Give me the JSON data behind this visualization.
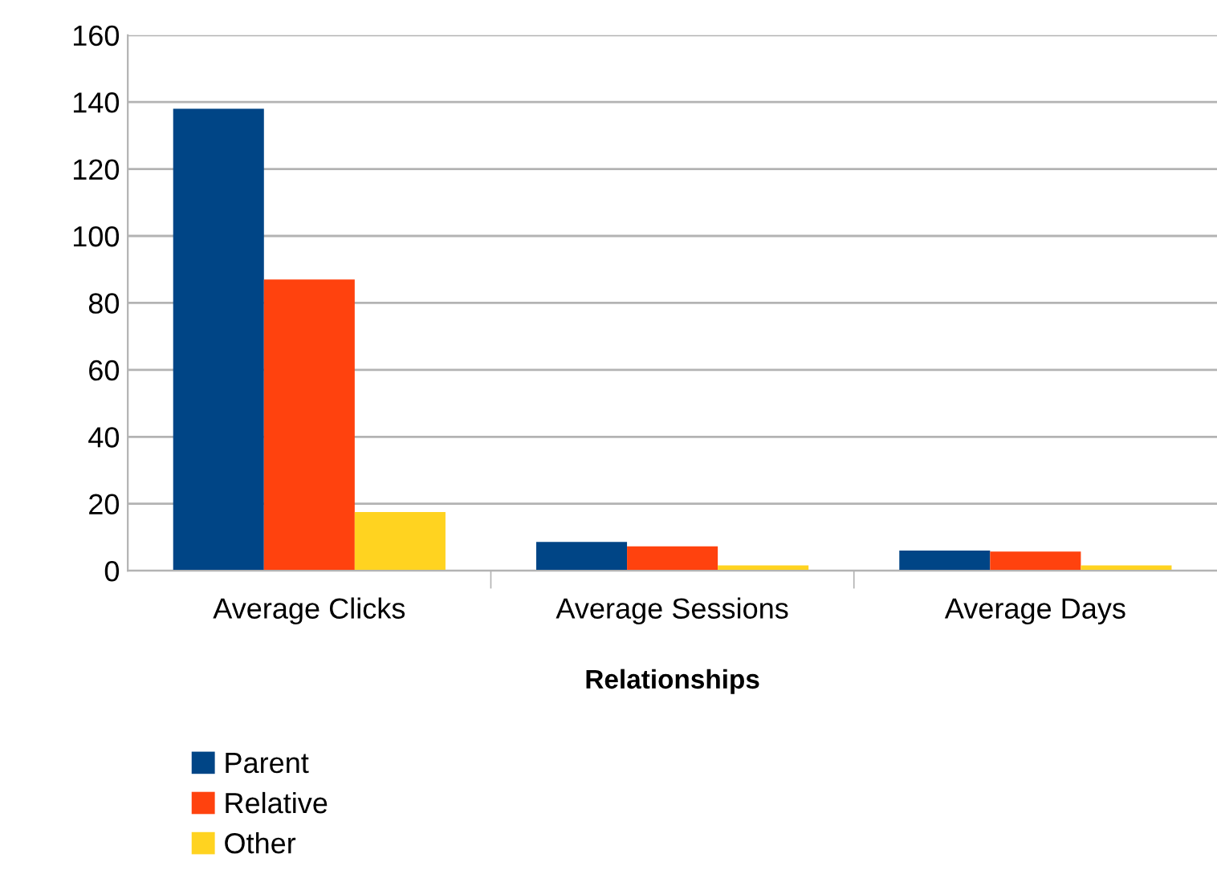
{
  "chart_data": {
    "type": "bar",
    "xlabel": "Relationships",
    "categories": [
      "Average Clicks",
      "Average Sessions",
      "Average Days"
    ],
    "series": [
      {
        "name": "Parent",
        "color": "#004586",
        "values": [
          138,
          8.6,
          6.0
        ]
      },
      {
        "name": "Relative",
        "color": "#ff420e",
        "values": [
          87,
          7.3,
          5.7
        ]
      },
      {
        "name": "Other",
        "color": "#ffd320",
        "values": [
          17.5,
          1.6,
          1.6
        ]
      }
    ],
    "ylim": [
      0,
      160
    ],
    "yticks": [
      0,
      20,
      40,
      60,
      80,
      100,
      120,
      140,
      160
    ],
    "grid": "y",
    "legend": "bottom left"
  }
}
